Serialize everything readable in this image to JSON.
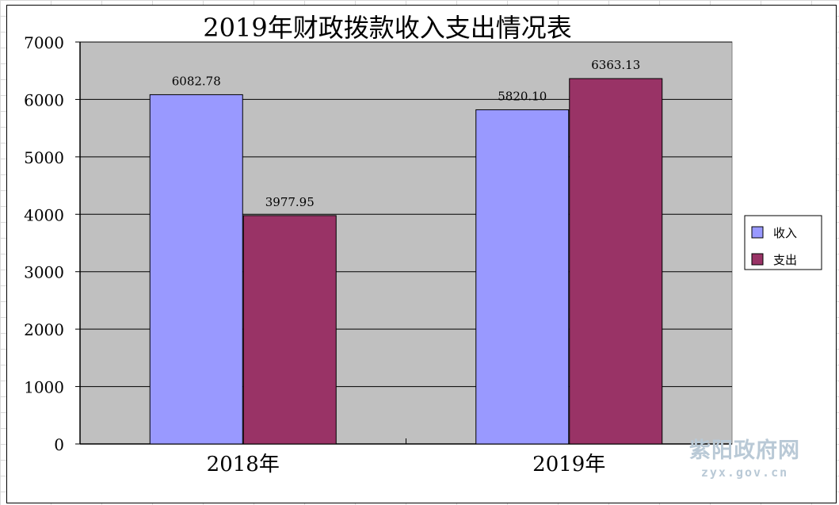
{
  "chart_data": {
    "type": "bar",
    "title": "2019年财政拨款收入支出情况表",
    "categories": [
      "2018年",
      "2019年"
    ],
    "series": [
      {
        "name": "收入",
        "values": [
          6082.78,
          5820.1
        ],
        "labels": [
          "6082.78",
          "5820.10"
        ],
        "color": "#9999ff"
      },
      {
        "name": "支出",
        "values": [
          3977.95,
          6363.13
        ],
        "labels": [
          "3977.95",
          "6363.13"
        ],
        "color": "#993366"
      }
    ],
    "ylim": [
      0,
      7000
    ],
    "yticks": [
      "0",
      "1000",
      "2000",
      "3000",
      "4000",
      "5000",
      "6000",
      "7000"
    ],
    "grid": true,
    "plot_background": "#c0c0c0",
    "legend_position": "right"
  },
  "watermark": {
    "logo": "紫阳政府网",
    "url": "zyx.gov.cn"
  }
}
